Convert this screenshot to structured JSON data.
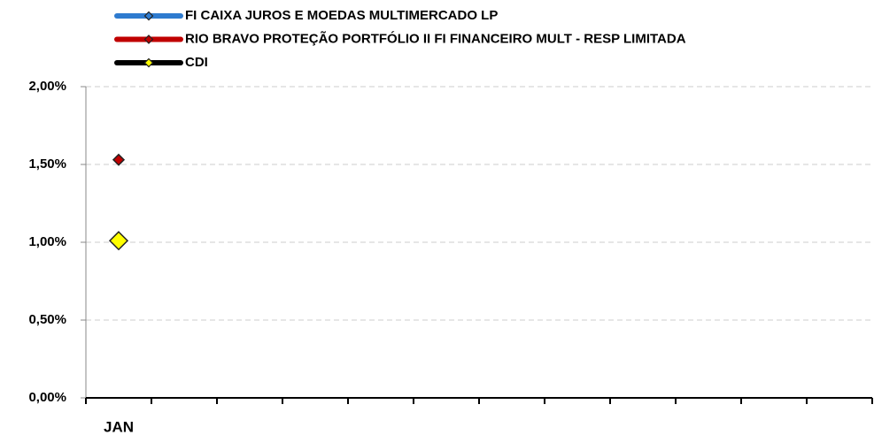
{
  "chart_data": {
    "type": "line",
    "categories": [
      "JAN",
      null,
      null,
      null,
      null,
      null,
      null,
      null,
      null,
      null,
      null,
      null
    ],
    "series": [
      {
        "name": "FI CAIXA JUROS E MOEDAS MULTIMERCADO LP",
        "color": "#2e7bcf",
        "marker_color": "#2e7bcf",
        "values": [
          null,
          null,
          null,
          null,
          null,
          null,
          null,
          null,
          null,
          null,
          null,
          null
        ]
      },
      {
        "name": "RIO BRAVO PROTEÇÃO PORTFÓLIO II FI FINANCEIRO MULT - RESP LIMITADA",
        "color": "#c00000",
        "marker_color": "#c00000",
        "values": [
          1.53,
          null,
          null,
          null,
          null,
          null,
          null,
          null,
          null,
          null,
          null,
          null
        ]
      },
      {
        "name": "CDI",
        "color": "#000000",
        "marker_color": "#ffff00",
        "values": [
          1.01,
          null,
          null,
          null,
          null,
          null,
          null,
          null,
          null,
          null,
          null,
          null
        ]
      }
    ],
    "ylim": [
      0,
      2
    ],
    "yticks": [
      {
        "value": 0,
        "label": "0,00%"
      },
      {
        "value": 0.5,
        "label": "0,50%"
      },
      {
        "value": 1,
        "label": "1,00%"
      },
      {
        "value": 1.5,
        "label": "1,50%"
      },
      {
        "value": 2,
        "label": "2,00%"
      }
    ],
    "grid": true,
    "legend": "top"
  }
}
